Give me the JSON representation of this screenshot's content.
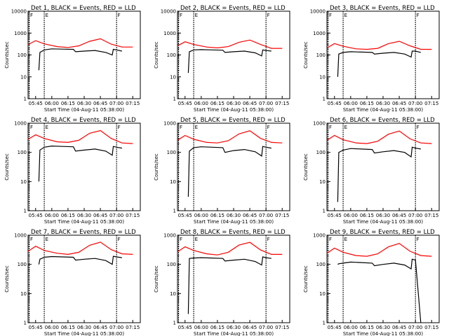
{
  "chart_data": [
    {
      "type": "line",
      "title": "Det 1, BLACK = Events, RED = LLD",
      "xlabel": "Start Time (04-Aug-11 05:38:00)",
      "ylabel": "Counts/sec",
      "ylim": [
        1,
        10000
      ],
      "yscale": "log",
      "xticks": [
        "05:45",
        "06:00",
        "06:15",
        "06:30",
        "06:45",
        "07:00",
        "07:15"
      ],
      "yticks": [
        "1",
        "10",
        "100",
        "1000",
        "10000"
      ],
      "markers": [
        {
          "x": "05:39",
          "label": "F"
        },
        {
          "x": "05:53",
          "label": "E"
        },
        {
          "x": "07:00",
          "label": "F"
        }
      ],
      "series": [
        {
          "color": "#ff0000",
          "x": [
            "05:38",
            "05:45",
            "05:53",
            "06:05",
            "06:15",
            "06:25",
            "06:35",
            "06:45",
            "06:55",
            "07:05",
            "07:15"
          ],
          "values": [
            300,
            450,
            320,
            240,
            220,
            260,
            420,
            550,
            310,
            230,
            230
          ]
        },
        {
          "color": "#000000",
          "x": [
            "05:48",
            "05:49",
            "05:53",
            "06:00",
            "06:10",
            "06:20",
            "06:22",
            "06:30",
            "06:40",
            "06:50",
            "06:56",
            "06:57",
            "07:00",
            "07:05"
          ],
          "values": [
            20,
            130,
            170,
            190,
            185,
            180,
            140,
            150,
            160,
            130,
            100,
            180,
            170,
            150
          ]
        }
      ]
    },
    {
      "type": "line",
      "title": "Det 2, BLACK = Events, RED = LLD",
      "xlabel": "Start Time (04-Aug-11 05:38:00)",
      "ylabel": "Counts/sec",
      "ylim": [
        1,
        10000
      ],
      "yscale": "log",
      "xticks": [
        "05:45",
        "06:00",
        "06:15",
        "06:30",
        "06:45",
        "07:00",
        "07:15"
      ],
      "yticks": [
        "1",
        "10",
        "100",
        "1000",
        "10000"
      ],
      "markers": [
        {
          "x": "05:39",
          "label": "F"
        },
        {
          "x": "05:53",
          "label": "E"
        },
        {
          "x": "07:00",
          "label": "F"
        }
      ],
      "series": [
        {
          "color": "#ff0000",
          "x": [
            "05:38",
            "05:45",
            "05:53",
            "06:05",
            "06:15",
            "06:25",
            "06:35",
            "06:45",
            "06:55",
            "07:05",
            "07:15"
          ],
          "values": [
            260,
            400,
            300,
            230,
            210,
            240,
            380,
            480,
            300,
            200,
            200
          ]
        },
        {
          "color": "#000000",
          "x": [
            "05:48",
            "05:49",
            "05:53",
            "06:00",
            "06:10",
            "06:20",
            "06:22",
            "06:30",
            "06:40",
            "06:50",
            "06:56",
            "06:57",
            "07:00",
            "07:05"
          ],
          "values": [
            15,
            140,
            170,
            175,
            170,
            165,
            130,
            140,
            150,
            125,
            90,
            170,
            160,
            150
          ]
        }
      ]
    },
    {
      "type": "line",
      "title": "Det 3, BLACK = Events, RED = LLD",
      "xlabel": "Start Time (04-Aug-11 05:38:00)",
      "ylabel": "Counts/sec",
      "ylim": [
        1,
        10000
      ],
      "yscale": "log",
      "xticks": [
        "05:45",
        "06:00",
        "06:15",
        "06:30",
        "06:45",
        "07:00",
        "07:15"
      ],
      "yticks": [
        "1",
        "10",
        "100",
        "1000",
        "10000"
      ],
      "markers": [
        {
          "x": "05:39",
          "label": "F"
        },
        {
          "x": "05:53",
          "label": "E"
        },
        {
          "x": "07:00",
          "label": "F"
        }
      ],
      "series": [
        {
          "color": "#ff0000",
          "x": [
            "05:38",
            "05:45",
            "05:53",
            "06:05",
            "06:15",
            "06:25",
            "06:35",
            "06:45",
            "06:55",
            "07:05",
            "07:15"
          ],
          "values": [
            210,
            330,
            250,
            190,
            180,
            200,
            330,
            420,
            260,
            180,
            180
          ]
        },
        {
          "color": "#000000",
          "x": [
            "05:48",
            "05:49",
            "05:53",
            "06:00",
            "06:10",
            "06:20",
            "06:22",
            "06:30",
            "06:40",
            "06:50",
            "06:56",
            "06:57",
            "07:00",
            "07:05"
          ],
          "values": [
            10,
            110,
            130,
            140,
            135,
            130,
            110,
            120,
            130,
            110,
            80,
            150,
            150,
            130
          ]
        }
      ]
    },
    {
      "type": "line",
      "title": "Det 4, BLACK = Events, RED = LLD",
      "xlabel": "Start Time (04-Aug-11 05:38:00)",
      "ylabel": "Counts/sec",
      "ylim": [
        1,
        1000
      ],
      "yscale": "log",
      "xticks": [
        "05:45",
        "06:00",
        "06:15",
        "06:30",
        "06:45",
        "07:00",
        "07:15"
      ],
      "yticks": [
        "1",
        "10",
        "100",
        "1000"
      ],
      "markers": [
        {
          "x": "05:39",
          "label": "F"
        },
        {
          "x": "05:53",
          "label": "E"
        },
        {
          "x": "07:00",
          "label": "F"
        }
      ],
      "series": [
        {
          "color": "#ff0000",
          "x": [
            "05:38",
            "05:45",
            "05:53",
            "06:05",
            "06:15",
            "06:25",
            "06:35",
            "06:45",
            "06:55",
            "07:05",
            "07:15"
          ],
          "values": [
            280,
            400,
            300,
            230,
            220,
            260,
            450,
            560,
            300,
            210,
            200
          ]
        },
        {
          "color": "#000000",
          "x": [
            "05:48",
            "05:49",
            "05:53",
            "06:00",
            "06:10",
            "06:20",
            "06:22",
            "06:30",
            "06:40",
            "06:50",
            "06:56",
            "06:57",
            "07:00",
            "07:05"
          ],
          "values": [
            10,
            120,
            150,
            165,
            160,
            155,
            110,
            120,
            130,
            110,
            80,
            160,
            150,
            140
          ]
        }
      ]
    },
    {
      "type": "line",
      "title": "Det 5, BLACK = Events, RED = LLD",
      "xlabel": "Start Time (04-Aug-11 05:38:00)",
      "ylabel": "Counts/sec",
      "ylim": [
        1,
        1000
      ],
      "yscale": "log",
      "xticks": [
        "05:45",
        "06:00",
        "06:15",
        "06:30",
        "06:45",
        "07:00",
        "07:15"
      ],
      "yticks": [
        "1",
        "10",
        "100",
        "1000"
      ],
      "markers": [
        {
          "x": "05:39",
          "label": "F"
        },
        {
          "x": "05:53",
          "label": "E"
        },
        {
          "x": "07:00",
          "label": "F"
        }
      ],
      "series": [
        {
          "color": "#ff0000",
          "x": [
            "05:38",
            "05:45",
            "05:53",
            "06:05",
            "06:15",
            "06:25",
            "06:35",
            "06:45",
            "06:55",
            "07:05",
            "07:15"
          ],
          "values": [
            260,
            380,
            280,
            220,
            210,
            250,
            430,
            550,
            300,
            220,
            210
          ]
        },
        {
          "color": "#000000",
          "x": [
            "05:48",
            "05:49",
            "05:53",
            "06:00",
            "06:10",
            "06:20",
            "06:22",
            "06:30",
            "06:40",
            "06:50",
            "06:56",
            "06:57",
            "07:00",
            "07:05"
          ],
          "values": [
            3,
            110,
            145,
            155,
            150,
            145,
            100,
            115,
            125,
            105,
            75,
            160,
            150,
            140
          ]
        }
      ]
    },
    {
      "type": "line",
      "title": "Det 6, BLACK = Events, RED = LLD",
      "xlabel": "Start Time (04-Aug-11 05:38:00)",
      "ylabel": "Counts/sec",
      "ylim": [
        1,
        1000
      ],
      "yscale": "log",
      "xticks": [
        "05:45",
        "06:00",
        "06:15",
        "06:30",
        "06:45",
        "07:00",
        "07:15"
      ],
      "yticks": [
        "1",
        "10",
        "100",
        "1000"
      ],
      "markers": [
        {
          "x": "05:39",
          "label": "F"
        },
        {
          "x": "05:53",
          "label": "E"
        },
        {
          "x": "07:00",
          "label": "F"
        }
      ],
      "series": [
        {
          "color": "#ff0000",
          "x": [
            "05:38",
            "05:45",
            "05:53",
            "06:05",
            "06:15",
            "06:25",
            "06:35",
            "06:45",
            "06:55",
            "07:05",
            "07:15"
          ],
          "values": [
            260,
            380,
            270,
            210,
            200,
            240,
            420,
            540,
            290,
            210,
            200
          ]
        },
        {
          "color": "#000000",
          "x": [
            "05:48",
            "05:49",
            "05:53",
            "06:00",
            "06:10",
            "06:20",
            "06:22",
            "06:30",
            "06:40",
            "06:50",
            "06:56",
            "06:57",
            "07:00",
            "07:05"
          ],
          "values": [
            2,
            100,
            120,
            135,
            130,
            125,
            95,
            105,
            115,
            100,
            70,
            150,
            140,
            130
          ]
        }
      ]
    },
    {
      "type": "line",
      "title": "Det 7, BLACK = Events, RED = LLD",
      "xlabel": "Start Time (04-Aug-11 05:38:00)",
      "ylabel": "Counts/sec",
      "ylim": [
        1,
        1000
      ],
      "yscale": "log",
      "xticks": [
        "05:45",
        "06:00",
        "06:15",
        "06:30",
        "06:45",
        "07:00",
        "07:15"
      ],
      "yticks": [
        "1",
        "10",
        "100",
        "1000"
      ],
      "markers": [
        {
          "x": "05:39",
          "label": "F"
        },
        {
          "x": "05:53",
          "label": "E"
        },
        {
          "x": "07:00",
          "label": "F"
        }
      ],
      "series": [
        {
          "color": "#ff0000",
          "x": [
            "05:38",
            "05:45",
            "05:53",
            "06:05",
            "06:15",
            "06:25",
            "06:35",
            "06:45",
            "06:55",
            "07:05",
            "07:15"
          ],
          "values": [
            280,
            420,
            300,
            240,
            220,
            260,
            450,
            580,
            320,
            230,
            220
          ]
        },
        {
          "color": "#000000",
          "x": [
            "05:48",
            "05:49",
            "05:53",
            "06:00",
            "06:10",
            "06:20",
            "06:22",
            "06:30",
            "06:40",
            "06:50",
            "06:56",
            "06:57",
            "07:00",
            "07:05"
          ],
          "values": [
            100,
            150,
            175,
            185,
            180,
            175,
            140,
            150,
            160,
            135,
            100,
            190,
            180,
            170
          ]
        }
      ]
    },
    {
      "type": "line",
      "title": "Det 8, BLACK = Events, RED = LLD",
      "xlabel": "Start Time (04-Aug-11 05:38:00)",
      "ylabel": "Counts/sec",
      "ylim": [
        1,
        1000
      ],
      "yscale": "log",
      "xticks": [
        "05:45",
        "06:00",
        "06:15",
        "06:30",
        "06:45",
        "07:00",
        "07:15"
      ],
      "yticks": [
        "1",
        "10",
        "100",
        "1000"
      ],
      "markers": [
        {
          "x": "05:39",
          "label": "F"
        },
        {
          "x": "05:53",
          "label": "E"
        },
        {
          "x": "07:00",
          "label": "F"
        }
      ],
      "series": [
        {
          "color": "#ff0000",
          "x": [
            "05:38",
            "05:45",
            "05:53",
            "06:05",
            "06:15",
            "06:25",
            "06:35",
            "06:45",
            "06:55",
            "07:05",
            "07:15"
          ],
          "values": [
            270,
            400,
            300,
            230,
            210,
            260,
            460,
            570,
            310,
            220,
            220
          ]
        },
        {
          "color": "#000000",
          "x": [
            "05:48",
            "05:49",
            "05:53",
            "06:00",
            "06:10",
            "06:20",
            "06:22",
            "06:30",
            "06:40",
            "06:50",
            "06:56",
            "06:57",
            "07:00",
            "07:05"
          ],
          "values": [
            2,
            160,
            165,
            170,
            165,
            160,
            130,
            140,
            150,
            125,
            95,
            180,
            170,
            160
          ]
        }
      ]
    },
    {
      "type": "line",
      "title": "Det 9, BLACK = Events, RED = LLD",
      "xlabel": "Start Time (04-Aug-11 05:38:00)",
      "ylabel": "Counts/sec",
      "ylim": [
        1,
        1000
      ],
      "yscale": "log",
      "xticks": [
        "05:45",
        "06:00",
        "06:15",
        "06:30",
        "06:45",
        "07:00",
        "07:15"
      ],
      "yticks": [
        "1",
        "10",
        "100",
        "1000"
      ],
      "markers": [
        {
          "x": "05:39",
          "label": "F"
        },
        {
          "x": "05:53",
          "label": "E"
        },
        {
          "x": "07:00",
          "label": "F"
        }
      ],
      "series": [
        {
          "color": "#ff0000",
          "x": [
            "05:38",
            "05:45",
            "05:53",
            "06:05",
            "06:15",
            "06:25",
            "06:35",
            "06:45",
            "06:55",
            "07:05",
            "07:15"
          ],
          "values": [
            240,
            360,
            260,
            200,
            190,
            230,
            400,
            520,
            280,
            200,
            190
          ]
        },
        {
          "color": "#000000",
          "x": [
            "05:48",
            "05:49",
            "05:53",
            "06:00",
            "06:10",
            "06:20",
            "06:22",
            "06:30",
            "06:40",
            "06:50",
            "06:56",
            "06:57",
            "07:00",
            "07:05"
          ],
          "values": [
            100,
            105,
            110,
            120,
            115,
            110,
            90,
            100,
            110,
            95,
            70,
            150,
            140,
            1
          ]
        }
      ]
    }
  ]
}
